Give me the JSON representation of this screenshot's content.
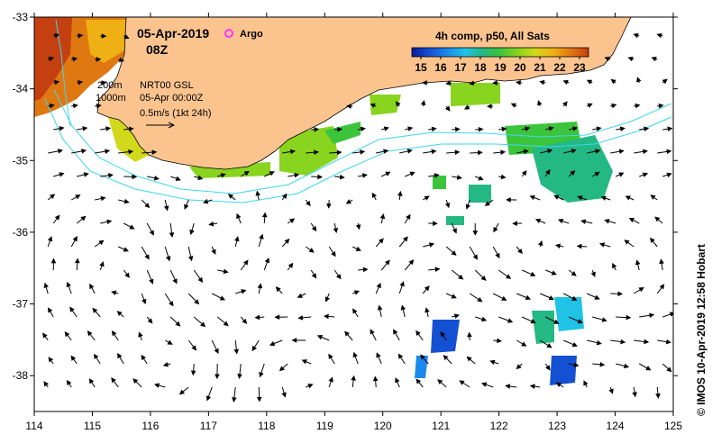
{
  "map": {
    "date": "05-Apr-2019",
    "time": "08Z",
    "argo_label": "Argo",
    "product_label": "NRT00 GSL",
    "product_time": "05-Apr 00:00Z",
    "current_scale": "0.5m/s (1kt 24h)",
    "isobaths": [
      "200m",
      "1000m"
    ],
    "colorbar_title": "4h comp, p50, All Sats",
    "colorbar_ticks": [
      "15",
      "16",
      "17",
      "18",
      "19",
      "20",
      "21",
      "22",
      "23"
    ],
    "credit": "© IMOS 10-Apr-2019 12:58 Hobart",
    "lon_ticks": [
      "114",
      "115",
      "116",
      "117",
      "118",
      "119",
      "120",
      "121",
      "122",
      "123",
      "124",
      "125"
    ],
    "lat_ticks": [
      "-33",
      "-34",
      "-35",
      "-36",
      "-37",
      "-38"
    ],
    "lon_range": [
      114,
      125
    ],
    "lat_range": [
      -38.5,
      -33
    ],
    "colors": {
      "land": "#fbc48f",
      "isobath": "#3ed6ee",
      "argo": "#ff33ff",
      "sst_scale": [
        "#0a1a9a",
        "#1450d2",
        "#1a8aec",
        "#20c2e6",
        "#24b884",
        "#3cc43c",
        "#88d41e",
        "#d2d81a",
        "#eeb014",
        "#e07812",
        "#c44010"
      ]
    }
  }
}
